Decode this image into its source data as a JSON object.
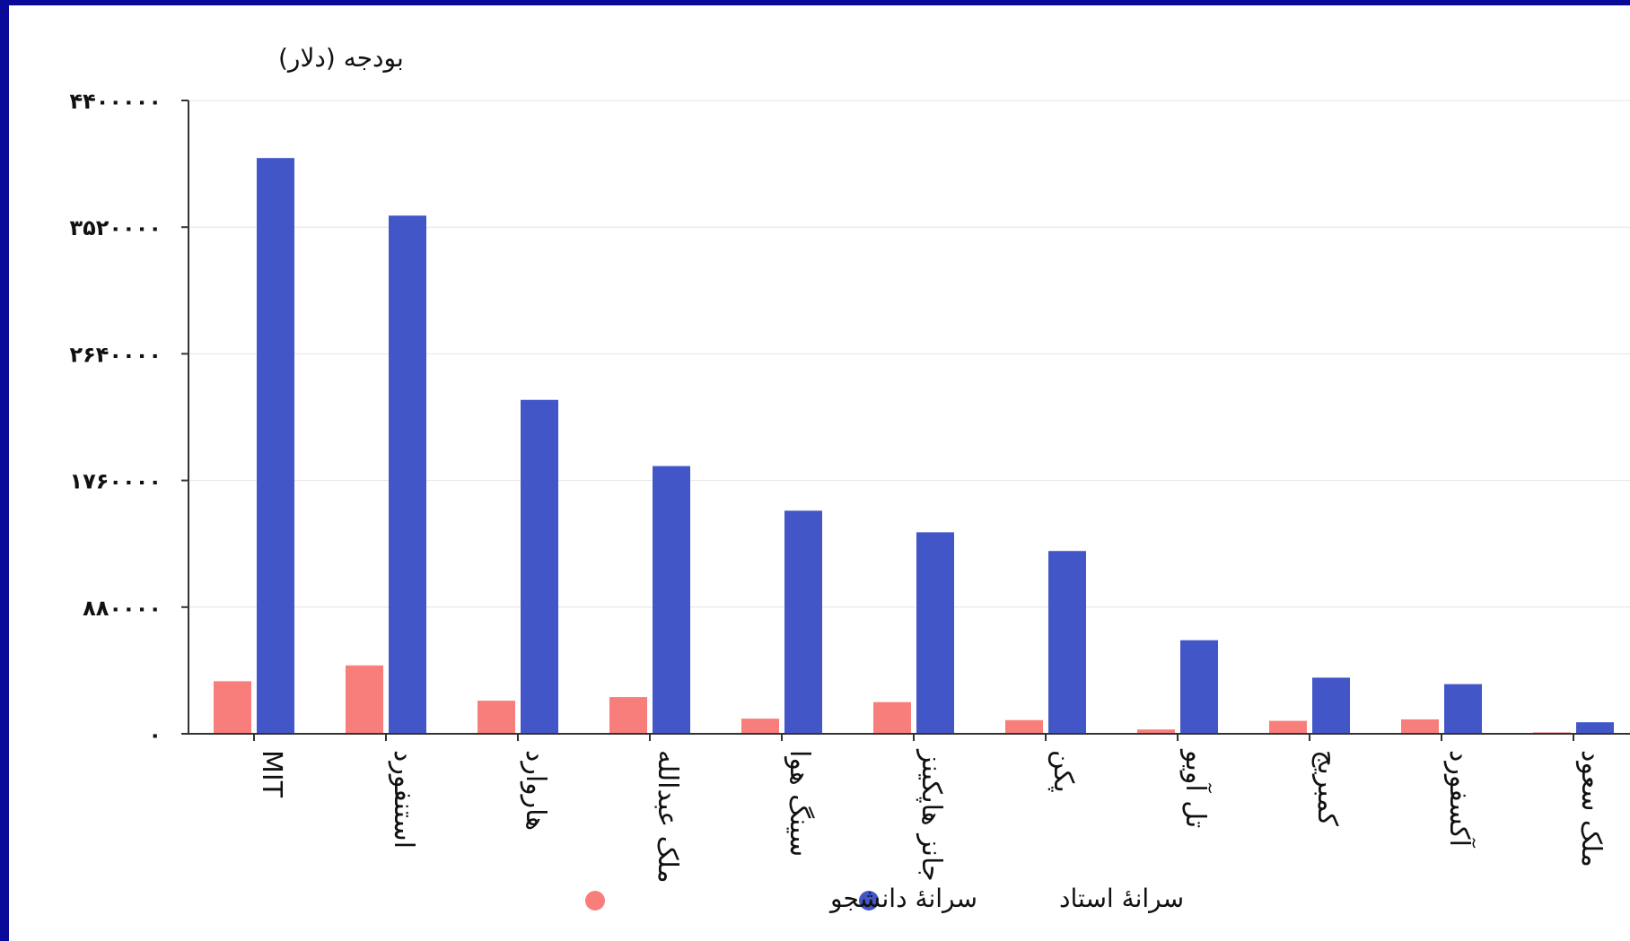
{
  "colors": {
    "frame": "#0a0a9a",
    "faculty": "#4356c8",
    "student": "#f77e7b",
    "grid": "#e4e4e4",
    "axis": "#333333"
  },
  "chart_data": {
    "type": "bar",
    "ylabel": "بودجه (دلار)",
    "ylim": [
      0,
      4400000
    ],
    "yticks": [
      0,
      880000,
      1760000,
      2640000,
      3520000,
      4400000
    ],
    "ytick_labels": [
      "۰",
      "۸۸۰۰۰۰",
      "۱۷۶۰۰۰۰",
      "۲۶۴۰۰۰۰",
      "۳۵۲۰۰۰۰",
      "۴۴۰۰۰۰۰"
    ],
    "categories": [
      "MIT",
      "استنفورد",
      "هاروارد",
      "ملک عبدالله",
      "سینگ هوا",
      "جانز هاپکینز",
      "پکن",
      "تل آویو",
      "کمبریج",
      "آکسفورد",
      "ملک سعود"
    ],
    "series": [
      {
        "name": "سرانهٔ دانشجو",
        "color": "#f77e7b",
        "values": [
          365000,
          475000,
          230000,
          255000,
          105000,
          220000,
          95000,
          30000,
          90000,
          100000,
          10000
        ]
      },
      {
        "name": "سرانهٔ استاد",
        "color": "#4356c8",
        "values": [
          4000000,
          3600000,
          2320000,
          1860000,
          1550000,
          1400000,
          1270000,
          650000,
          390000,
          345000,
          80000
        ]
      }
    ],
    "grid": true,
    "legend": "bottom"
  }
}
